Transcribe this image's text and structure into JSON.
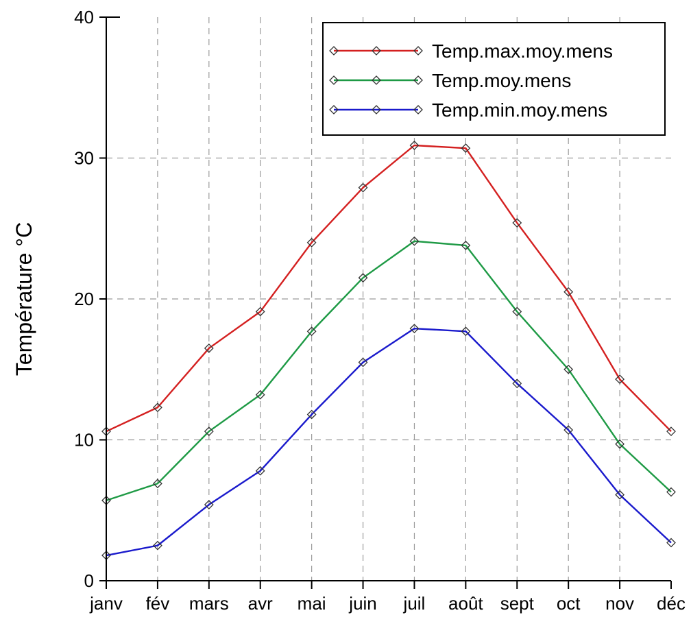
{
  "chart_data": {
    "type": "line",
    "title": "",
    "xlabel": "",
    "ylabel": "Température °C",
    "ylim": [
      0,
      40
    ],
    "yticks": [
      0,
      10,
      20,
      30,
      40
    ],
    "grid": true,
    "legend_position": "top-right",
    "categories": [
      "janv",
      "fév",
      "mars",
      "avr",
      "mai",
      "juin",
      "juil",
      "août",
      "sept",
      "oct",
      "nov",
      "déc"
    ],
    "series": [
      {
        "name": "Temp.max.moy.mens",
        "color": "#d42020",
        "values": [
          10.6,
          12.3,
          16.5,
          19.1,
          24.0,
          27.9,
          30.9,
          30.7,
          25.4,
          20.5,
          14.3,
          10.6
        ]
      },
      {
        "name": "Temp.moy.mens",
        "color": "#1e9a45",
        "values": [
          5.7,
          6.9,
          10.6,
          13.2,
          17.7,
          21.5,
          24.1,
          23.8,
          19.1,
          15.0,
          9.7,
          6.3
        ]
      },
      {
        "name": "Temp.min.moy.mens",
        "color": "#1a1acc",
        "values": [
          1.8,
          2.5,
          5.4,
          7.8,
          11.8,
          15.5,
          17.9,
          17.7,
          14.0,
          10.7,
          6.1,
          2.7
        ]
      }
    ]
  }
}
